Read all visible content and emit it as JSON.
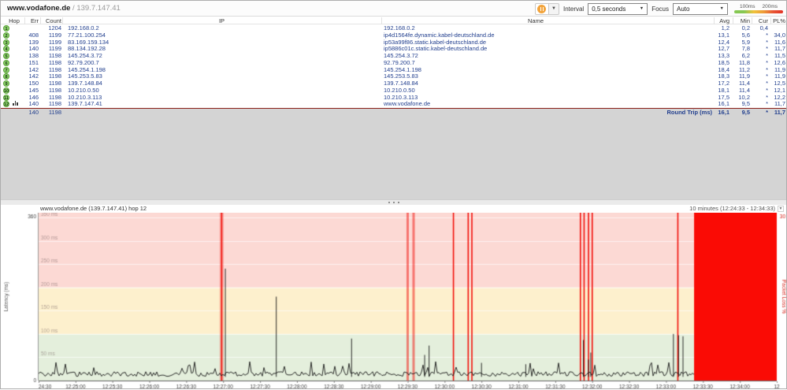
{
  "window": {
    "title_host": "www.vodafone.de",
    "title_sep": " / ",
    "title_ip": "139.7.147.41"
  },
  "toolbar": {
    "pause_icon": "pause",
    "interval_label": "Interval",
    "interval_value": "0,5 seconds",
    "focus_label": "Focus",
    "focus_value": "Auto",
    "legend": {
      "label_100": "100ms",
      "label_200": "200ms",
      "colors": {
        "good": "#86c853",
        "warn": "#f0c23a",
        "bad": "#e23124"
      }
    }
  },
  "table": {
    "headers": {
      "hop": "Hop",
      "err": "Err",
      "count": "Count",
      "ip": "IP",
      "name": "Name",
      "avg": "Avg",
      "min": "Min",
      "cur": "Cur",
      "pl": "PL%"
    },
    "rows": [
      {
        "hop": "1",
        "err": "",
        "count": "1204",
        "ip": "192.168.0.2",
        "name": "192.168.0.2",
        "avg": "1,2",
        "min": "0,2",
        "cur": "0,4",
        "pl": "",
        "focused": false
      },
      {
        "hop": "2",
        "err": "408",
        "count": "1199",
        "ip": "77.21.100.254",
        "name": "ip4d1564fe.dynamic.kabel-deutschland.de",
        "avg": "13,1",
        "min": "5,6",
        "cur": "*",
        "pl": "34,0",
        "focused": false
      },
      {
        "hop": "3",
        "err": "139",
        "count": "1199",
        "ip": "83.169.159.134",
        "name": "ip53a99f86.static.kabel-deutschland.de",
        "avg": "12,4",
        "min": "5,9",
        "cur": "*",
        "pl": "11,6",
        "focused": false
      },
      {
        "hop": "4",
        "err": "140",
        "count": "1199",
        "ip": "88.134.192.28",
        "name": "ip5886c01c.static.kabel-deutschland.de",
        "avg": "12,7",
        "min": "7,8",
        "cur": "*",
        "pl": "11,7",
        "focused": false
      },
      {
        "hop": "5",
        "err": "138",
        "count": "1198",
        "ip": "145.254.3.72",
        "name": "145.254.3.72",
        "avg": "13,3",
        "min": "6,2",
        "cur": "*",
        "pl": "11,5",
        "focused": false
      },
      {
        "hop": "6",
        "err": "151",
        "count": "1198",
        "ip": "92.79.200.7",
        "name": "92.79.200.7",
        "avg": "18,5",
        "min": "11,8",
        "cur": "*",
        "pl": "12,6",
        "focused": false
      },
      {
        "hop": "7",
        "err": "142",
        "count": "1198",
        "ip": "145.254.1.198",
        "name": "145.254.1.198",
        "avg": "18,4",
        "min": "11,2",
        "cur": "*",
        "pl": "11,9",
        "focused": false
      },
      {
        "hop": "8",
        "err": "142",
        "count": "1198",
        "ip": "145.253.5.83",
        "name": "145.253.5.83",
        "avg": "18,3",
        "min": "11,9",
        "cur": "*",
        "pl": "11,9",
        "focused": false
      },
      {
        "hop": "9",
        "err": "150",
        "count": "1198",
        "ip": "139.7.148.84",
        "name": "139.7.148.84",
        "avg": "17,2",
        "min": "11,4",
        "cur": "*",
        "pl": "12,5",
        "focused": false
      },
      {
        "hop": "10",
        "err": "145",
        "count": "1198",
        "ip": "10.210.0.50",
        "name": "10.210.0.50",
        "avg": "18,1",
        "min": "11,4",
        "cur": "*",
        "pl": "12,1",
        "focused": false
      },
      {
        "hop": "11",
        "err": "146",
        "count": "1198",
        "ip": "10.210.3.113",
        "name": "10.210.3.113",
        "avg": "17,5",
        "min": "10,2",
        "cur": "*",
        "pl": "12,2",
        "focused": false
      },
      {
        "hop": "12",
        "err": "140",
        "count": "1198",
        "ip": "139.7.147.41",
        "name": "www.vodafone.de",
        "avg": "16,1",
        "min": "9,5",
        "cur": "*",
        "pl": "11,7",
        "focused": true
      }
    ],
    "summary": {
      "err": "140",
      "count": "1198",
      "label": "Round Trip (ms)",
      "avg": "16,1",
      "min": "9,5",
      "cur": "*",
      "pl": "11,7"
    }
  },
  "graph": {
    "title": "www.vodafone.de (139.7.147.41) hop 12",
    "range_label": "10 minutes (12:24:33 - 12:34:33)"
  },
  "chart_data": {
    "type": "line",
    "title": "www.vodafone.de (139.7.147.41) hop 12",
    "time_range": "10 minutes (12:24:33 - 12:34:33)",
    "ylabel": "Latency (ms)",
    "y2label": "Packet Loss %",
    "ylim": [
      0,
      360
    ],
    "y_top_label": "360",
    "y_bottom_label": "0",
    "y2_top_label": "30",
    "grid_labels": [
      "50 ms",
      "100 ms",
      "150 ms",
      "200 ms",
      "250 ms",
      "300 ms",
      "350 ms"
    ],
    "grid_ms": [
      50,
      100,
      150,
      200,
      250,
      300,
      350
    ],
    "zones": [
      {
        "max_ms": 100,
        "color": "#e4efdc"
      },
      {
        "max_ms": 200,
        "color": "#fdf0cd"
      },
      {
        "max_ms": 360,
        "color": "#fcd9d4"
      }
    ],
    "x_tick_labels": [
      "24:30",
      "12:25:00",
      "12:25:30",
      "12:26:00",
      "12:26:30",
      "12:27:00",
      "12:27:30",
      "12:28:00",
      "12:28:30",
      "12:29:00",
      "12:29:30",
      "12:30:00",
      "12:30:30",
      "12:31:00",
      "12:31:30",
      "12:32:00",
      "12:32:30",
      "12:33:00",
      "12:33:30",
      "12:34:00",
      "12"
    ],
    "baseline_ms": 14,
    "latency_spikes": [
      {
        "t": 0.253,
        "ms": 240
      },
      {
        "t": 0.322,
        "ms": 180
      },
      {
        "t": 0.424,
        "ms": 90
      },
      {
        "t": 0.523,
        "ms": 55
      },
      {
        "t": 0.529,
        "ms": 75
      },
      {
        "t": 0.6,
        "ms": 38
      },
      {
        "t": 0.66,
        "ms": 35
      },
      {
        "t": 0.738,
        "ms": 87
      },
      {
        "t": 0.745,
        "ms": 45
      },
      {
        "t": 0.748,
        "ms": 60
      },
      {
        "t": 0.86,
        "ms": 100
      },
      {
        "t": 0.867,
        "ms": 97
      },
      {
        "t": 0.873,
        "ms": 95
      }
    ],
    "packet_loss_lines": [
      {
        "t": 0.248,
        "w": 1.6,
        "halo": true
      },
      {
        "t": 0.5,
        "w": 3,
        "alpha": 0.5
      },
      {
        "t": 0.508,
        "w": 3,
        "alpha": 0.5
      },
      {
        "t": 0.562,
        "w": 1.6
      },
      {
        "t": 0.582,
        "w": 1.6
      },
      {
        "t": 0.587,
        "w": 1.6
      },
      {
        "t": 0.734,
        "w": 1.6
      },
      {
        "t": 0.739,
        "w": 1.6
      },
      {
        "t": 0.745,
        "w": 1.6
      },
      {
        "t": 0.75,
        "w": 1.6
      },
      {
        "t": 0.866,
        "w": 1.6
      }
    ],
    "outage": {
      "from_t": 0.888,
      "to_t": 1.0
    },
    "colors": {
      "trace": "#161616",
      "loss": "#f2120c",
      "outage": "#fa0b05",
      "axis_text": "#444",
      "loss_axis_text": "#d42018"
    }
  }
}
